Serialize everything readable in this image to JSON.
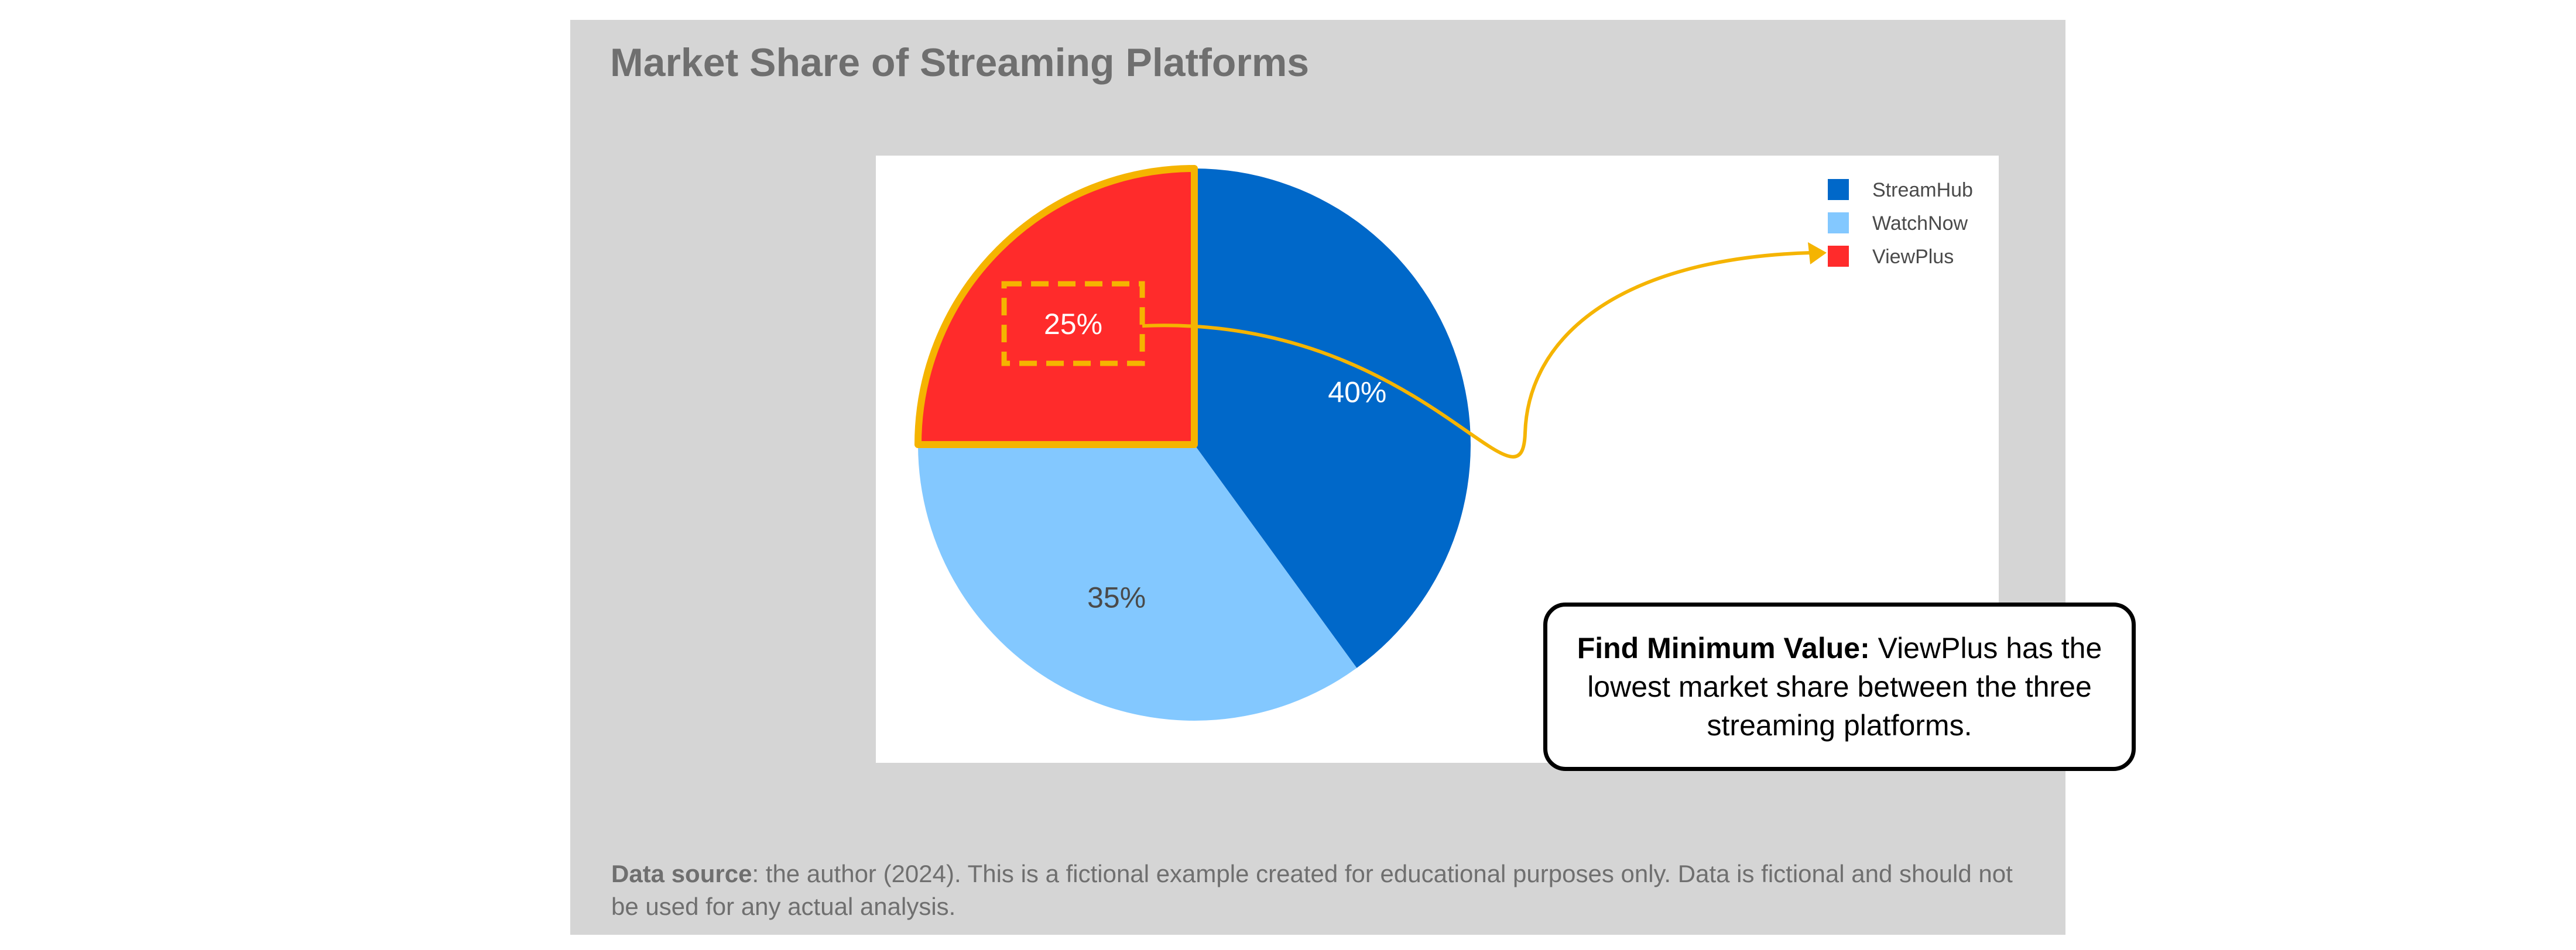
{
  "chart_data": {
    "type": "pie",
    "title": "Market Share of Streaming Platforms",
    "categories": [
      "StreamHub",
      "WatchNow",
      "ViewPlus"
    ],
    "values": [
      40,
      35,
      25
    ],
    "value_labels": [
      "40%",
      "35%",
      "25%"
    ],
    "colors": [
      "#0068c9",
      "#83c8ff",
      "#ff2b2b"
    ],
    "label_colors": [
      "#ffffff",
      "#4a4a4a",
      "#ffffff"
    ],
    "start_angle_deg": 0,
    "direction": "clockwise",
    "legend": {
      "placement": "top-right",
      "entries": [
        "StreamHub",
        "WatchNow",
        "ViewPlus"
      ]
    },
    "highlight": {
      "category": "ViewPlus",
      "outline_color": "#f5b400"
    },
    "annotation": {
      "bold": "Find Minimum Value:",
      "text": " ViewPlus has the lowest market share between the three streaming platforms.",
      "arrow_color": "#f5b400"
    }
  },
  "source": {
    "label": "Data source",
    "text": ": the author (2024). This is a fictional example created for educational purposes only. Data is fictional and should not be used for any actual analysis."
  }
}
